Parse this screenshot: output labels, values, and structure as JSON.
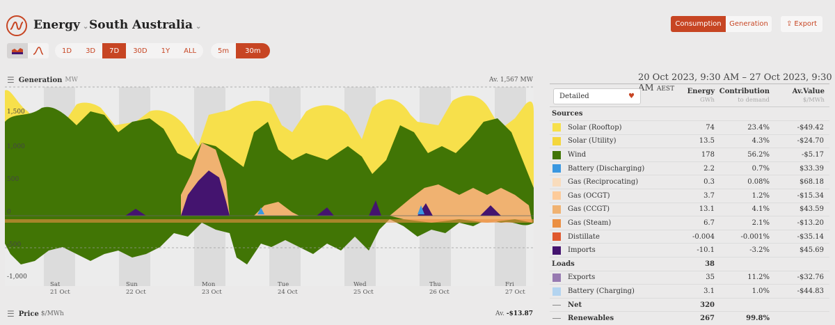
{
  "header": {
    "energy": "Energy",
    "region": "South Australia",
    "consumption": "Consumption",
    "generation": "Generation",
    "export": "Export"
  },
  "ranges": [
    "1D",
    "3D",
    "7D",
    "30D",
    "1Y",
    "ALL"
  ],
  "active_range": "7D",
  "intervals": [
    "5m",
    "30m"
  ],
  "active_interval": "30m",
  "chart": {
    "title": "Generation",
    "unit": "MW",
    "average": "Av. 1,567 MW",
    "y_ticks": [
      "1,500",
      "1,000",
      "500",
      "0",
      "-500",
      "-1,000"
    ],
    "x_ticks": [
      {
        "day": "Sat",
        "date": "21 Oct"
      },
      {
        "day": "Sun",
        "date": "22 Oct"
      },
      {
        "day": "Mon",
        "date": "23 Oct"
      },
      {
        "day": "Tue",
        "date": "24 Oct"
      },
      {
        "day": "Wed",
        "date": "25 Oct"
      },
      {
        "day": "Thu",
        "date": "26 Oct"
      },
      {
        "day": "Fri",
        "date": "27 Oct"
      }
    ]
  },
  "price": {
    "title": "Price",
    "unit": "$/MWh",
    "average_label": "Av.",
    "average_value": "-$13.87"
  },
  "summary": {
    "date_range": "20 Oct 2023, 9:30 AM – 27 Oct 2023, 9:30 AM",
    "tz": "AEST",
    "view": "Detailed",
    "col_energy": "Energy",
    "col_energy_unit": "GWh",
    "col_contrib": "Contribution",
    "col_contrib_unit": "to demand",
    "col_value": "Av.Value",
    "col_value_unit": "$/MWh",
    "sources_label": "Sources",
    "sources": [
      {
        "name": "Solar (Rooftop)",
        "energy": "74",
        "contrib": "23.4%",
        "value": "-$49.42",
        "color": "#f7e04b"
      },
      {
        "name": "Solar (Utility)",
        "energy": "13.5",
        "contrib": "4.3%",
        "value": "-$24.70",
        "color": "#f4d63b"
      },
      {
        "name": "Wind",
        "energy": "178",
        "contrib": "56.2%",
        "value": "-$5.17",
        "color": "#417505"
      },
      {
        "name": "Battery (Discharging)",
        "energy": "2.2",
        "contrib": "0.7%",
        "value": "$33.39",
        "color": "#3a97e0"
      },
      {
        "name": "Gas (Reciprocating)",
        "energy": "0.3",
        "contrib": "0.08%",
        "value": "$68.18",
        "color": "#f9dcbc"
      },
      {
        "name": "Gas (OCGT)",
        "energy": "3.7",
        "contrib": "1.2%",
        "value": "-$15.34",
        "color": "#fdcb9a"
      },
      {
        "name": "Gas (CCGT)",
        "energy": "13.1",
        "contrib": "4.1%",
        "value": "$43.59",
        "color": "#f0b271"
      },
      {
        "name": "Gas (Steam)",
        "energy": "6.7",
        "contrib": "2.1%",
        "value": "-$13.20",
        "color": "#eb8f42"
      },
      {
        "name": "Distillate",
        "energy": "-0.004",
        "contrib": "-0.001%",
        "value": "-$35.14",
        "color": "#e0582d"
      },
      {
        "name": "Imports",
        "energy": "-10.1",
        "contrib": "-3.2%",
        "value": "$45.69",
        "color": "#44146f"
      }
    ],
    "loads_label": "Loads",
    "loads_energy": "38",
    "loads": [
      {
        "name": "Exports",
        "energy": "35",
        "contrib": "11.2%",
        "value": "-$32.76",
        "color": "#977ab1"
      },
      {
        "name": "Battery (Charging)",
        "energy": "3.1",
        "contrib": "1.0%",
        "value": "-$44.83",
        "color": "#b3d4f0"
      }
    ],
    "net_label": "Net",
    "net_energy": "320",
    "renewables_label": "Renewables",
    "renewables_energy": "267",
    "renewables_contrib": "99.8%"
  }
}
